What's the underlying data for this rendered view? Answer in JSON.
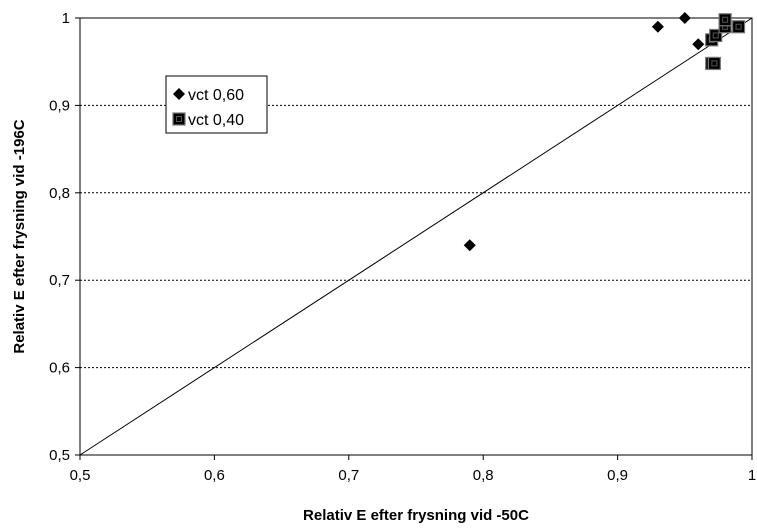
{
  "chart_data": {
    "type": "scatter",
    "title": "",
    "xlabel": "Relativ E efter frysning vid -50C",
    "ylabel": "Relativ E efter frysning vid -196C",
    "xlim": [
      0.5,
      1.0
    ],
    "ylim": [
      0.5,
      1.0
    ],
    "x_ticks": [
      0.5,
      0.6,
      0.7,
      0.8,
      0.9,
      1.0
    ],
    "x_tick_labels": [
      "0,5",
      "0,6",
      "0,7",
      "0,8",
      "0,9",
      "1"
    ],
    "y_ticks": [
      0.5,
      0.6,
      0.7,
      0.8,
      0.9,
      1.0
    ],
    "y_tick_labels": [
      "0,5",
      "0,6",
      "0,7",
      "0,8",
      "0,9",
      "1"
    ],
    "grid": "horizontal dashed",
    "legend_position": "top-left",
    "reference_line": {
      "x": [
        0.5,
        1.0
      ],
      "y": [
        0.5,
        1.0
      ]
    },
    "series": [
      {
        "name": "vct 0,60",
        "marker": "diamond",
        "color": "#000000",
        "points": [
          {
            "x": 0.79,
            "y": 0.74
          },
          {
            "x": 0.93,
            "y": 0.99
          },
          {
            "x": 0.95,
            "y": 1.0
          },
          {
            "x": 0.96,
            "y": 0.97
          }
        ]
      },
      {
        "name": "vct 0,40",
        "marker": "square",
        "color": "#000000",
        "points": [
          {
            "x": 0.97,
            "y": 0.948
          },
          {
            "x": 0.972,
            "y": 0.948
          },
          {
            "x": 0.97,
            "y": 0.975
          },
          {
            "x": 0.973,
            "y": 0.98
          },
          {
            "x": 0.98,
            "y": 0.99
          },
          {
            "x": 0.98,
            "y": 0.998
          },
          {
            "x": 0.99,
            "y": 0.99
          }
        ]
      }
    ]
  }
}
